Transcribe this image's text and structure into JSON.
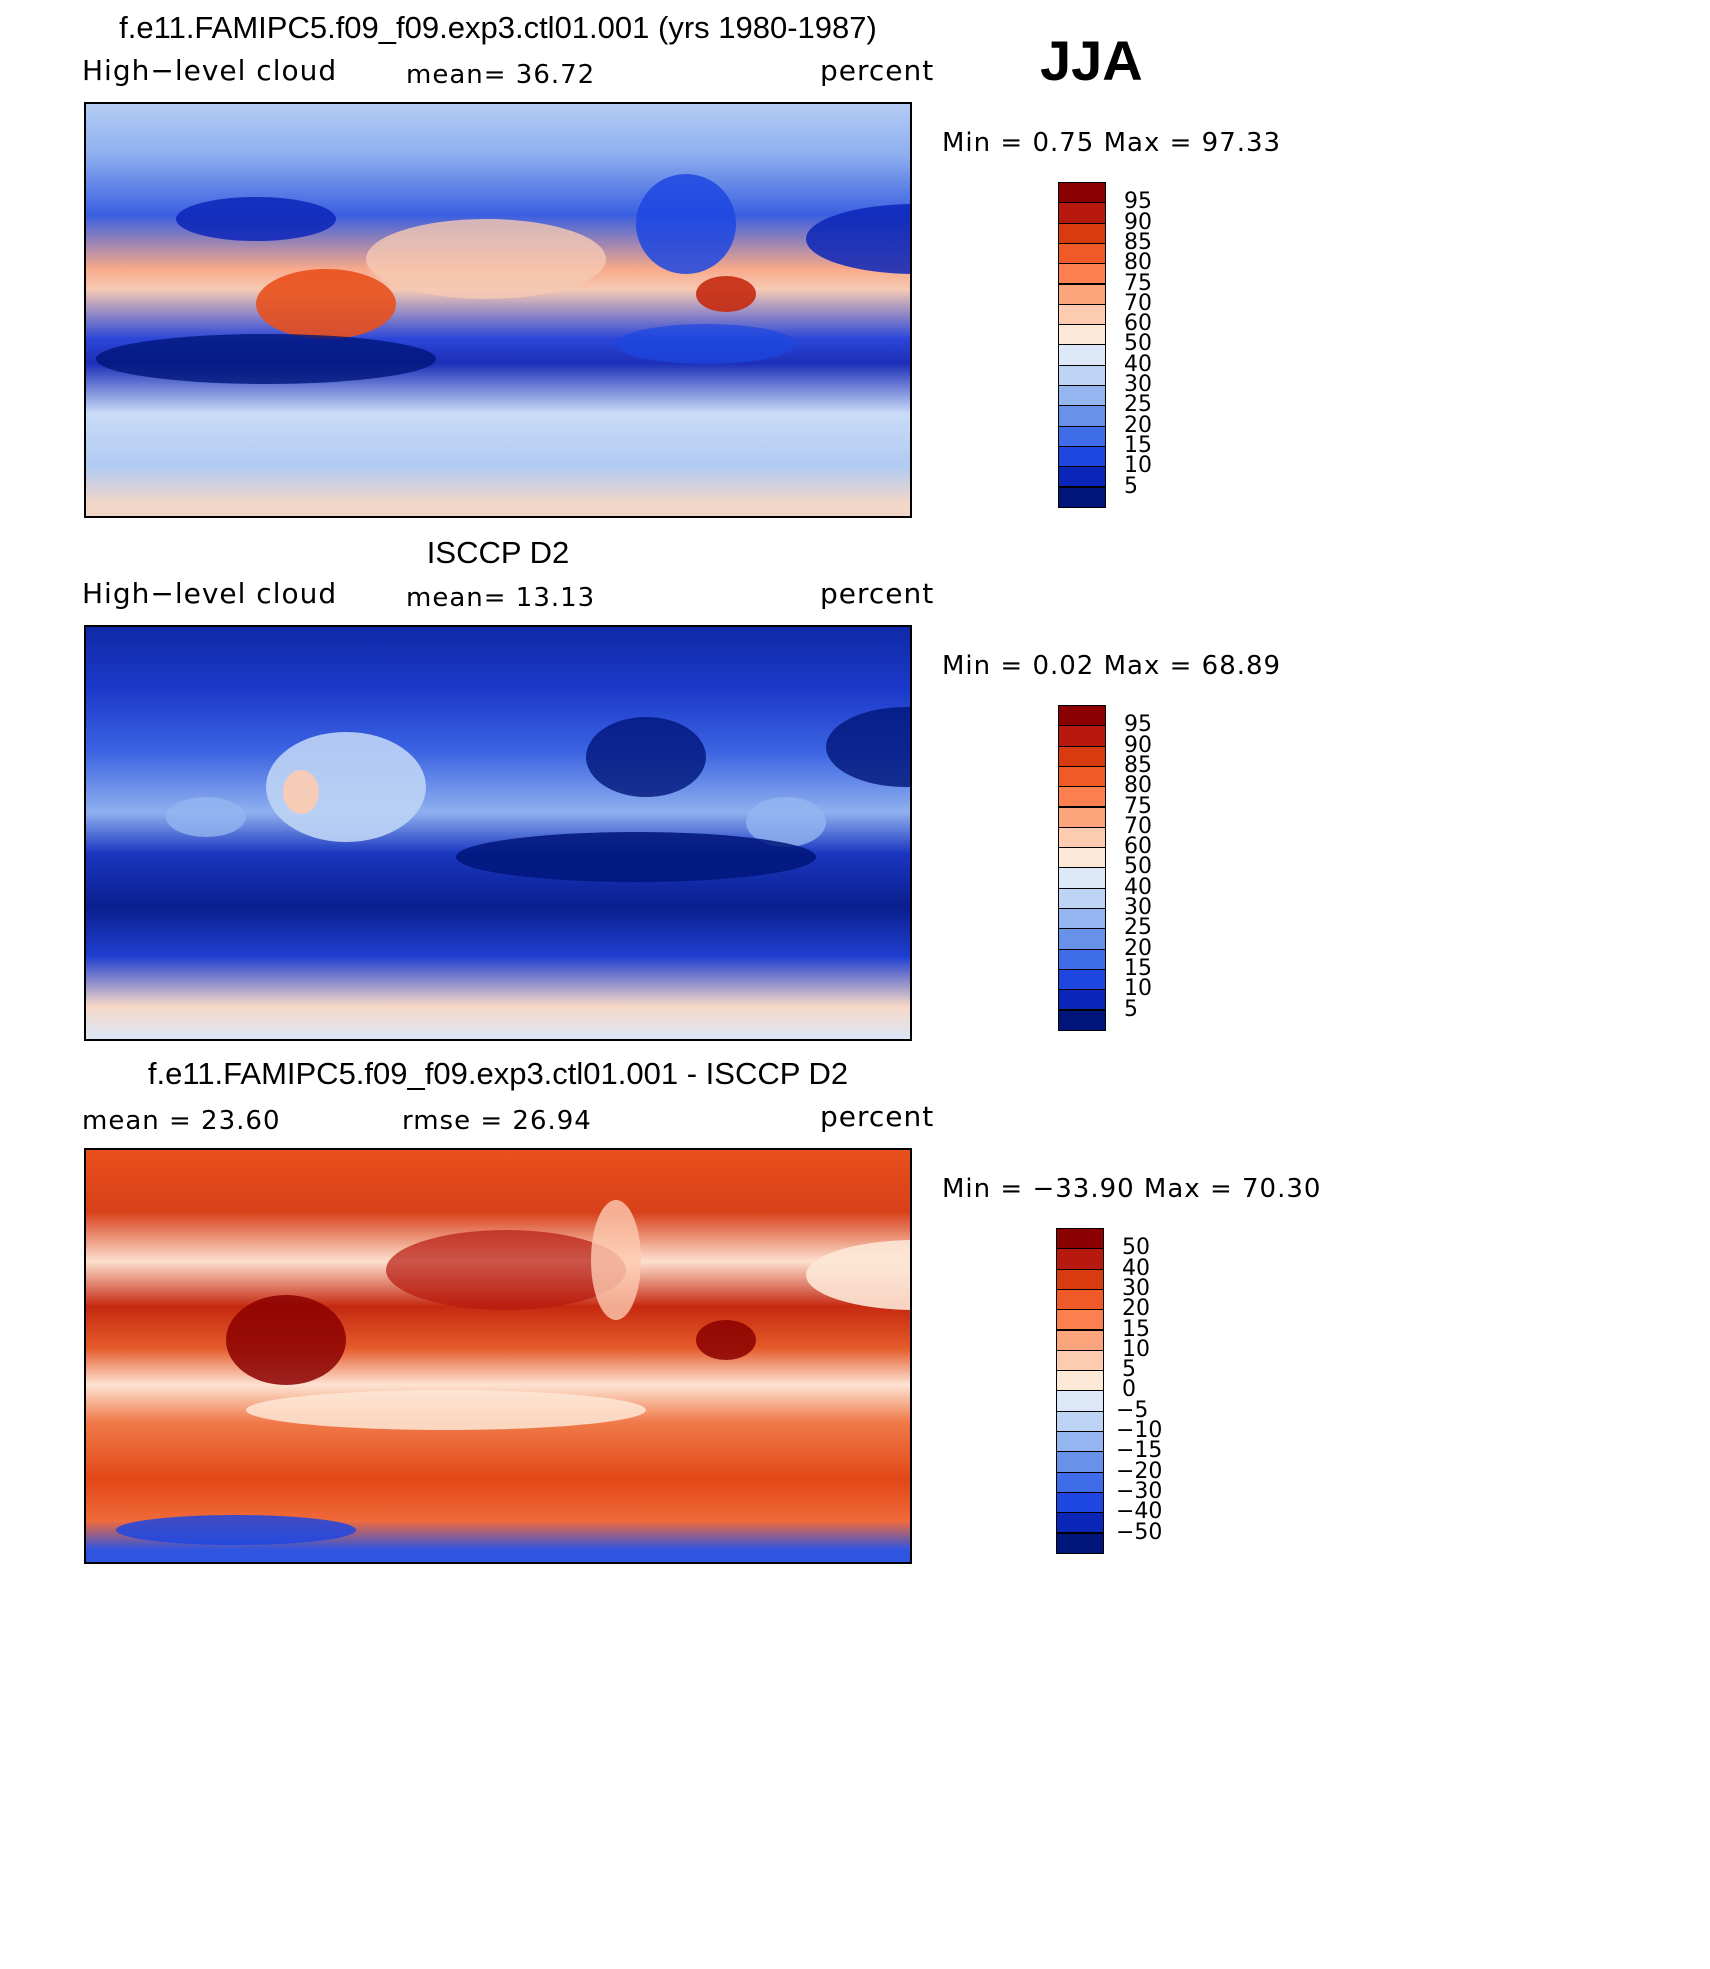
{
  "season": "JJA",
  "panels": [
    {
      "id": "model",
      "title": "f.e11.FAMIPC5.f09_f09.exp3.ctl01.001 (yrs 1980-1987)",
      "left_label": "High−level cloud",
      "center_label": "mean=  36.72",
      "right_label": "percent",
      "minmax": "Min =    0.75 Max =   97.33",
      "colorbar_labels": [
        "95",
        "90",
        "85",
        "80",
        "75",
        "70",
        "60",
        "50",
        "40",
        "30",
        "25",
        "20",
        "15",
        "10",
        "5"
      ],
      "colorbar_colors": [
        "#8b0000",
        "#b7190f",
        "#d93b10",
        "#f05a28",
        "#fb7f4f",
        "#fca57c",
        "#fdcbb0",
        "#fde7d6",
        "#dde9f8",
        "#bed4f5",
        "#94b5f0",
        "#6891ea",
        "#3f6ce8",
        "#1d47e0",
        "#0a26b8",
        "#00157a"
      ],
      "map_gradient": "linear-gradient(180deg,#b5cdf4 0%,#8fb0ef 12%,#3a5fe0 27%,#f8a98a 40%,#f6c9b3 45%,#2b46d8 57%,#1d2fb8 63%,#c9dbf6 75%,#b2cbf3 88%,#f2d6c8 97%)"
    },
    {
      "id": "obs",
      "title": "ISCCP D2",
      "left_label": "High−level cloud",
      "center_label": "mean=  13.13",
      "right_label": "percent",
      "minmax": "Min =    0.02 Max =   68.89",
      "colorbar_labels": [
        "95",
        "90",
        "85",
        "80",
        "75",
        "70",
        "60",
        "50",
        "40",
        "30",
        "25",
        "20",
        "15",
        "10",
        "5"
      ],
      "colorbar_colors": [
        "#8b0000",
        "#b7190f",
        "#d93b10",
        "#f05a28",
        "#fb7f4f",
        "#fca57c",
        "#fdcbb0",
        "#fde7d6",
        "#dde9f8",
        "#bed4f5",
        "#94b5f0",
        "#6891ea",
        "#3f6ce8",
        "#1d47e0",
        "#0a26b8",
        "#00157a"
      ],
      "map_gradient": "linear-gradient(180deg,#0f2aa8 0%,#1b39c9 15%,#3b63e2 30%,#8fb0ef 45%,#1a36c0 55%,#0a1f8e 68%,#1f3fd0 80%,#f6d8c8 92%,#dce6f7 100%)"
    },
    {
      "id": "diff",
      "title": "f.e11.FAMIPC5.f09_f09.exp3.ctl01.001 - ISCCP D2",
      "left_label": "mean =   23.60",
      "center_label": "rmse =   26.94",
      "right_label": "percent",
      "minmax": "Min = −33.90 Max =   70.30",
      "colorbar_labels": [
        "50",
        "40",
        "30",
        "20",
        "15",
        "10",
        "5",
        "0",
        "−5",
        "−10",
        "−15",
        "−20",
        "−30",
        "−40",
        "−50"
      ],
      "colorbar_colors": [
        "#8b0000",
        "#b7190f",
        "#d93b10",
        "#f05a28",
        "#fb7f4f",
        "#fca57c",
        "#fdcbb0",
        "#fde7d6",
        "#dde9f8",
        "#bed4f5",
        "#94b5f0",
        "#6891ea",
        "#3f6ce8",
        "#1d47e0",
        "#0a26b8",
        "#00157a"
      ],
      "map_gradient": "linear-gradient(180deg,#e8501c 0%,#d8401a 15%,#fde0cf 27%,#c52a10 38%,#e55a2a 48%,#fde3d2 57%,#f07a4a 66%,#e24716 80%,#f06a3a 90%,#2f55e0 97%)"
    }
  ],
  "chart_data": {
    "type": "heatmap",
    "variable": "High-level cloud",
    "units": "percent",
    "season": "JJA",
    "panels": [
      {
        "title": "f.e11.FAMIPC5.f09_f09.exp3.ctl01.001 (yrs 1980-1987)",
        "mean": 36.72,
        "min": 0.75,
        "max": 97.33,
        "levels": [
          5,
          10,
          15,
          20,
          25,
          30,
          40,
          50,
          60,
          70,
          75,
          80,
          85,
          90,
          95
        ]
      },
      {
        "title": "ISCCP D2",
        "mean": 13.13,
        "min": 0.02,
        "max": 68.89,
        "levels": [
          5,
          10,
          15,
          20,
          25,
          30,
          40,
          50,
          60,
          70,
          75,
          80,
          85,
          90,
          95
        ]
      },
      {
        "title": "f.e11.FAMIPC5.f09_f09.exp3.ctl01.001 - ISCCP D2",
        "mean": 23.6,
        "rmse": 26.94,
        "min": -33.9,
        "max": 70.3,
        "levels": [
          -50,
          -40,
          -30,
          -20,
          -15,
          -10,
          -5,
          0,
          5,
          10,
          15,
          20,
          30,
          40,
          50
        ]
      }
    ]
  }
}
